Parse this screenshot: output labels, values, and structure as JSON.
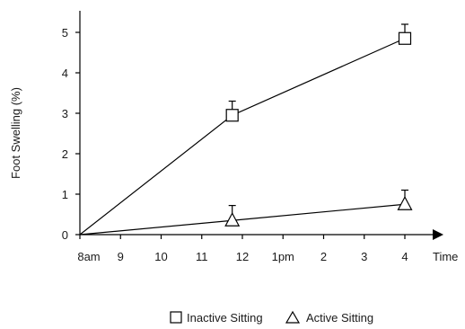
{
  "chart_data": {
    "type": "line",
    "ylabel": "Foot Swelling (%)",
    "xlabel": "Time",
    "x_ticks": [
      "8am",
      "9",
      "10",
      "11",
      "12",
      "1pm",
      "2",
      "3",
      "4"
    ],
    "y_ticks": [
      "0",
      "1",
      "2",
      "3",
      "4",
      "5"
    ],
    "ylim": [
      0,
      5.5
    ],
    "x_values": [
      "8am",
      "11:45",
      "4"
    ],
    "series": [
      {
        "name": "Inactive Sitting",
        "marker": "square",
        "points": [
          {
            "x": 0,
            "y": 0
          },
          {
            "x": 3.75,
            "y": 2.95,
            "err": 0.35
          },
          {
            "x": 8,
            "y": 4.85,
            "err": 0.35
          }
        ]
      },
      {
        "name": "Active Sitting",
        "marker": "triangle",
        "points": [
          {
            "x": 0,
            "y": 0
          },
          {
            "x": 3.75,
            "y": 0.35,
            "err": 0.37
          },
          {
            "x": 8,
            "y": 0.75,
            "err": 0.35
          }
        ]
      }
    ],
    "legend_position": "bottom-left",
    "grid": false,
    "colors": {
      "line": "#000000",
      "marker_fill": "#ffffff"
    }
  }
}
